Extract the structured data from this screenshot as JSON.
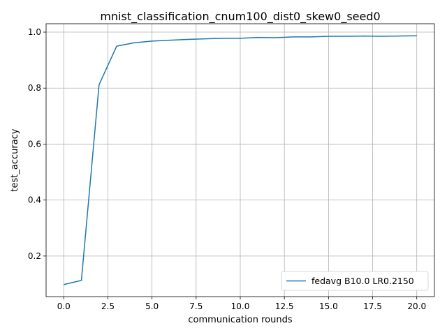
{
  "chart_data": {
    "type": "line",
    "title": "mnist_classification_cnum100_dist0_skew0_seed0",
    "xlabel": "communication rounds",
    "ylabel": "test_accuracy",
    "xlim": [
      -1.0,
      21.0
    ],
    "ylim": [
      0.055,
      1.03
    ],
    "xticks": [
      0.0,
      2.5,
      5.0,
      7.5,
      10.0,
      12.5,
      15.0,
      17.5,
      20.0
    ],
    "xtick_labels": [
      "0.0",
      "2.5",
      "5.0",
      "7.5",
      "10.0",
      "12.5",
      "15.0",
      "17.5",
      "20.0"
    ],
    "yticks": [
      0.2,
      0.4,
      0.6,
      0.8,
      1.0
    ],
    "ytick_labels": [
      "0.2",
      "0.4",
      "0.6",
      "0.8",
      "1.0"
    ],
    "grid": true,
    "legend_position": "bottom-right",
    "series": [
      {
        "name": "fedavg B10.0 LR0.2150",
        "color": "#1f77b4",
        "x": [
          0,
          1,
          2,
          3,
          4,
          5,
          6,
          7,
          8,
          9,
          10,
          11,
          12,
          13,
          14,
          15,
          16,
          17,
          18,
          19,
          20
        ],
        "values": [
          0.098,
          0.113,
          0.812,
          0.95,
          0.962,
          0.968,
          0.971,
          0.974,
          0.976,
          0.978,
          0.978,
          0.981,
          0.98,
          0.983,
          0.983,
          0.985,
          0.985,
          0.986,
          0.985,
          0.986,
          0.987
        ]
      }
    ]
  }
}
